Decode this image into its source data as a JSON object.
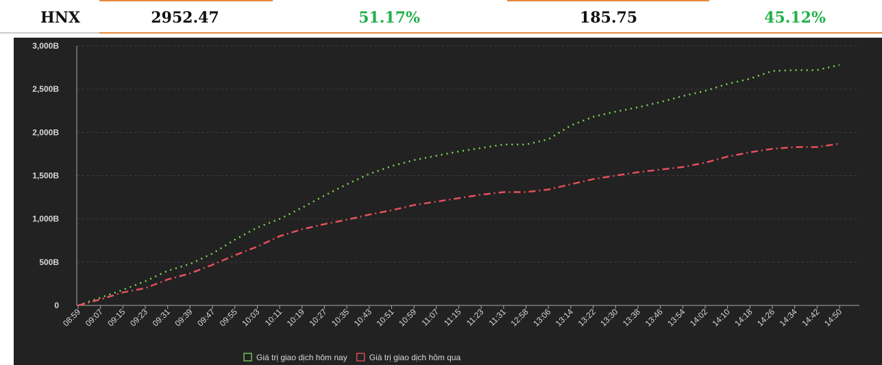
{
  "table": {
    "rows": [
      [
        "HNX",
        "2952.47",
        "51.17%",
        "185.75",
        "45.12%"
      ]
    ]
  },
  "chart_data": {
    "type": "line",
    "categories": [
      "08:59",
      "09:07",
      "09:15",
      "09:23",
      "09:31",
      "09:39",
      "09:47",
      "09:55",
      "10:03",
      "10:11",
      "10:19",
      "10:27",
      "10:35",
      "10:43",
      "10:51",
      "10:59",
      "11:07",
      "11:15",
      "11:23",
      "11:31",
      "12:58",
      "13:06",
      "13:14",
      "13:22",
      "13:30",
      "13:38",
      "13:46",
      "13:54",
      "14:02",
      "14:10",
      "14:18",
      "14:26",
      "14:34",
      "14:42",
      "14:50"
    ],
    "series": [
      {
        "name": "Giá trị giao dịch hôm nay",
        "color": "#7ed957",
        "dash": "2 6",
        "values": [
          0,
          90,
          180,
          280,
          400,
          480,
          600,
          760,
          900,
          1000,
          1130,
          1270,
          1400,
          1520,
          1610,
          1680,
          1730,
          1780,
          1820,
          1860,
          1860,
          1920,
          2080,
          2180,
          2240,
          2290,
          2350,
          2420,
          2480,
          2560,
          2620,
          2710,
          2720,
          2720,
          2780
        ]
      },
      {
        "name": "Giá trị giao dịch hôm qua",
        "color": "#e8505b",
        "dash": "10 5 2 5",
        "values": [
          0,
          70,
          150,
          200,
          300,
          370,
          470,
          580,
          680,
          800,
          880,
          940,
          990,
          1050,
          1100,
          1160,
          1200,
          1240,
          1280,
          1310,
          1310,
          1340,
          1400,
          1460,
          1500,
          1540,
          1570,
          1600,
          1650,
          1720,
          1770,
          1810,
          1830,
          1830,
          1870
        ]
      }
    ],
    "ylim": [
      0,
      3000
    ],
    "yticks": [
      0,
      {
        "value": 500,
        "label": "500B"
      },
      {
        "value": 1000,
        "label": "1,000B"
      },
      {
        "value": 1500,
        "label": "1,500B"
      },
      {
        "value": 2000,
        "label": "2,000B"
      },
      {
        "value": 2500,
        "label": "2,500B"
      },
      {
        "value": 3000,
        "label": "3,000B"
      }
    ],
    "grid": true
  }
}
